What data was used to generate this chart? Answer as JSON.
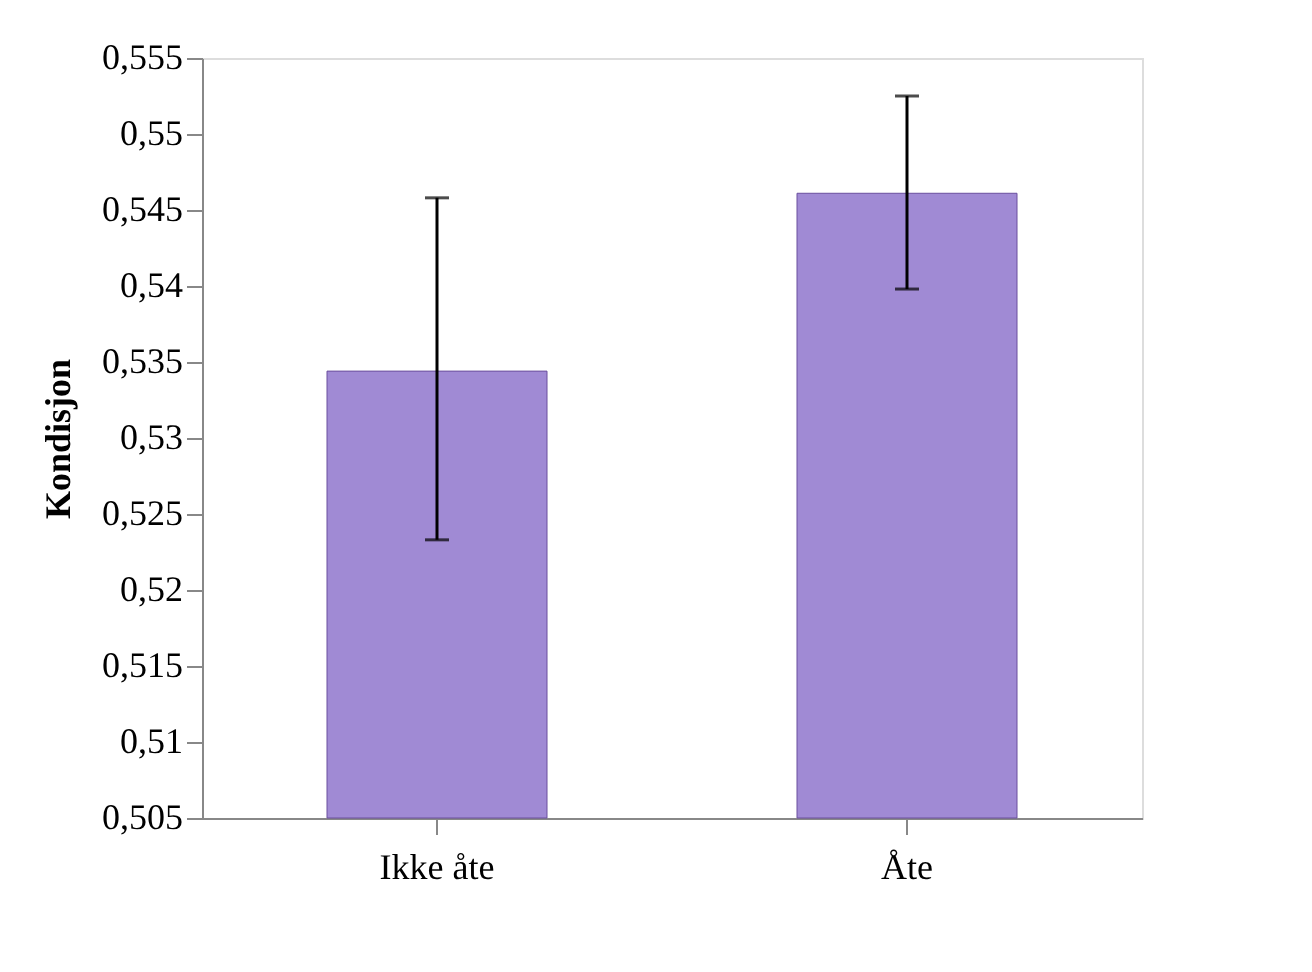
{
  "chart_data": {
    "type": "bar",
    "ylabel": "Kondisjon",
    "categories": [
      "Ikke åte",
      "Åte"
    ],
    "values": [
      0.5344,
      0.5461
    ],
    "errors": [
      [
        0.5233,
        0.5458
      ],
      [
        0.5398,
        0.5525
      ]
    ],
    "color": "#a08ad4",
    "ylim": [
      0.505,
      0.555
    ],
    "yticks": [
      {
        "value": 0.505,
        "label": "0,505"
      },
      {
        "value": 0.51,
        "label": "0,51"
      },
      {
        "value": 0.515,
        "label": "0,515"
      },
      {
        "value": 0.52,
        "label": "0,52"
      },
      {
        "value": 0.525,
        "label": "0,525"
      },
      {
        "value": 0.53,
        "label": "0,53"
      },
      {
        "value": 0.535,
        "label": "0,535"
      },
      {
        "value": 0.54,
        "label": "0,54"
      },
      {
        "value": 0.545,
        "label": "0,545"
      },
      {
        "value": 0.55,
        "label": "0,55"
      },
      {
        "value": 0.555,
        "label": "0,555"
      }
    ],
    "grid": false
  }
}
